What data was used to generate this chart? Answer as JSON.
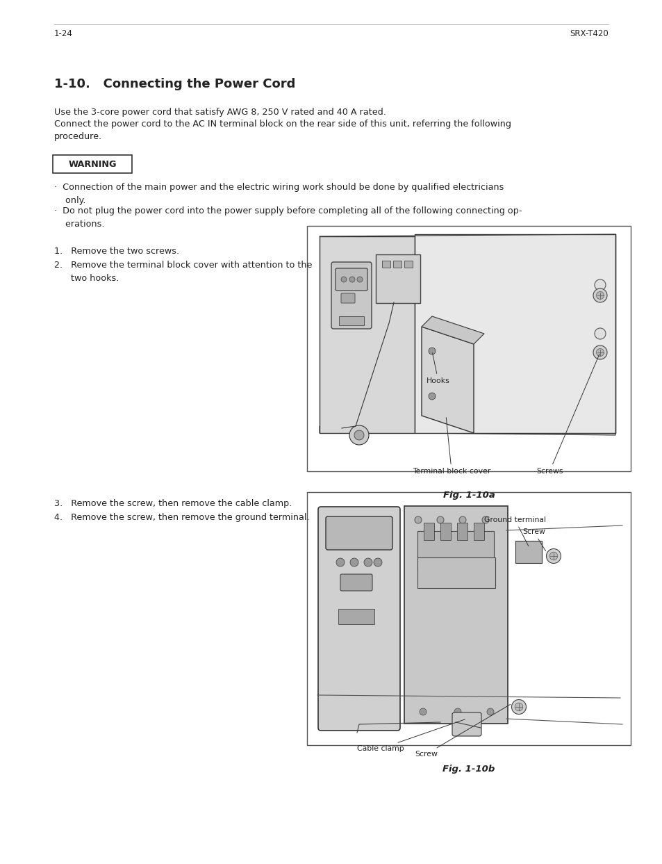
{
  "bg_color": "#ffffff",
  "page_width": 9.54,
  "page_height": 12.43,
  "dpi": 100,
  "body_color": "#222222",
  "body_fontsize": 9.2,
  "title": "1-10.   Connecting the Power Cord",
  "title_fontsize": 13,
  "intro_lines": [
    "Use the 3-core power cord that satisfy AWG 8, 250 V rated and 40 A rated.",
    "Connect the power cord to the AC IN terminal block on the rear side of this unit, referring the following",
    "procedure."
  ],
  "warning_label": "WARNING",
  "warning_bullet1_line1": "·  Connection of the main power and the electric wiring work should be done by qualified electricians",
  "warning_bullet1_line2": "    only.",
  "warning_bullet2_line1": "·  Do not plug the power cord into the power supply before completing all of the following connecting op-",
  "warning_bullet2_line2": "    erations.",
  "step1": "1.   Remove the two screws.",
  "step2_line1": "2.   Remove the terminal block cover with attention to the",
  "step2_line2": "      two hooks.",
  "step3": "3.   Remove the screw, then remove the cable clamp.",
  "step4": "4.   Remove the screw, then remove the ground terminal.",
  "fig1_label": "Fig. 1-10a",
  "fig2_label": "Fig. 1-10b",
  "footer_page": "1-24",
  "footer_model": "SRX-T420",
  "footer_fontsize": 8.5,
  "annot_fontsize": 7.8
}
